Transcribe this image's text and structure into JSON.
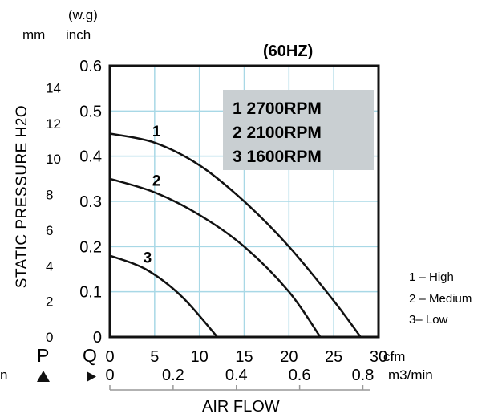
{
  "chart_data": {
    "type": "line",
    "title": "(60HZ)",
    "xlabel": "AIR FLOW",
    "ylabel": "STATIC PRESSURE H2O",
    "x_unit": "cfm",
    "x_unit_secondary": "m3/min",
    "y_unit_header": "(w.g)",
    "y_unit_left": "mm",
    "y_unit_right": "inch",
    "xlim": [
      0,
      30
    ],
    "ylim": [
      0,
      0.6
    ],
    "x_ticks": [
      "0",
      "5",
      "10",
      "15",
      "20",
      "25",
      "30"
    ],
    "x_ticks_secondary": [
      "0",
      "0.2",
      "0.4",
      "0.6",
      "0.8"
    ],
    "y_ticks": [
      "0",
      "0.1",
      "0.2",
      "0.3",
      "0.4",
      "0.5",
      "0.6"
    ],
    "y_ticks_mm": [
      "0",
      "2",
      "4",
      "6",
      "8",
      "10",
      "12",
      "14"
    ],
    "grid": true,
    "p_letter": "P",
    "q_letter": "Q",
    "cut_text": "n",
    "series": [
      {
        "name": "1",
        "x": [
          0,
          5,
          10,
          15,
          20,
          25,
          28
        ],
        "y": [
          0.45,
          0.43,
          0.38,
          0.3,
          0.2,
          0.08,
          0
        ]
      },
      {
        "name": "2",
        "x": [
          0,
          5,
          10,
          15,
          20,
          23.5
        ],
        "y": [
          0.35,
          0.32,
          0.27,
          0.2,
          0.1,
          0
        ]
      },
      {
        "name": "3",
        "x": [
          0,
          4,
          8,
          12
        ],
        "y": [
          0.18,
          0.15,
          0.09,
          0
        ]
      }
    ],
    "legend_box": [
      "1 2700RPM",
      "2 2100RPM",
      "3 1600RPM"
    ],
    "side_legend": [
      "1 – High",
      "2 – Medium",
      "3–  Low"
    ]
  }
}
